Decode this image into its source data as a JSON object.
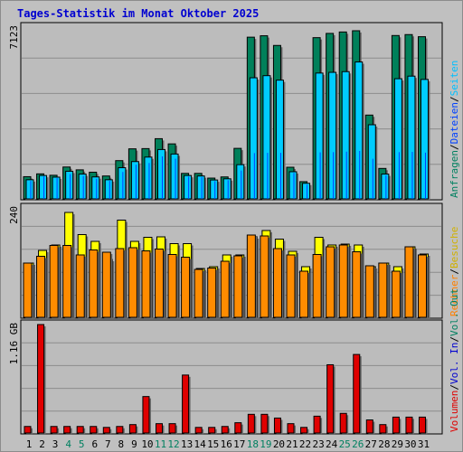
{
  "title": "Tages-Statistik im Monat Oktober 2025",
  "chart_data": [
    {
      "type": "bar",
      "panel": "top",
      "max_label": "7123",
      "ylim": [
        0,
        7123
      ],
      "categories": [
        "1",
        "2",
        "3",
        "4",
        "5",
        "6",
        "7",
        "8",
        "9",
        "10",
        "11",
        "12",
        "13",
        "14",
        "15",
        "16",
        "17",
        "18",
        "19",
        "20",
        "21",
        "22",
        "23",
        "24",
        "25",
        "26",
        "27",
        "28",
        "29",
        "30",
        "31"
      ],
      "weekend_days": [
        "4",
        "5",
        "11",
        "12",
        "18",
        "19",
        "25",
        "26"
      ],
      "legend": [
        {
          "text": "Anfragen",
          "color": "#008060"
        },
        {
          "text": "Dateien",
          "color": "#0040ff"
        },
        {
          "text": "Seiten",
          "color": "#00c0ff"
        }
      ],
      "legend_sep": "/",
      "series": [
        {
          "name": "Anfragen",
          "color": "#00805a",
          "values": [
            940,
            1060,
            1000,
            1350,
            1230,
            1130,
            970,
            1620,
            2120,
            2130,
            2550,
            2330,
            1080,
            1080,
            880,
            930,
            2140,
            6850,
            6910,
            6500,
            1340,
            730,
            6830,
            7010,
            7070,
            7123,
            3550,
            1290,
            6920,
            6960,
            6870
          ]
        },
        {
          "name": "Dateien",
          "color": "#0040ff",
          "values": [
            760,
            950,
            880,
            1050,
            970,
            850,
            760,
            1140,
            1450,
            1520,
            1800,
            1700,
            940,
            920,
            750,
            790,
            1200,
            1940,
            1950,
            1950,
            1100,
            600,
            1970,
            1980,
            2000,
            2030,
            1700,
            990,
            1980,
            1990,
            1960
          ]
        },
        {
          "name": "Seiten",
          "color": "#00ccff",
          "values": [
            810,
            990,
            920,
            1170,
            1050,
            930,
            810,
            1320,
            1580,
            1770,
            2090,
            1900,
            990,
            970,
            800,
            850,
            1450,
            5130,
            5220,
            5030,
            1150,
            660,
            5330,
            5360,
            5390,
            5800,
            3140,
            1050,
            5090,
            5200,
            5060
          ]
        }
      ]
    },
    {
      "type": "bar",
      "panel": "middle",
      "max_label": "240",
      "ylim": [
        0,
        240
      ],
      "categories": [
        "1",
        "2",
        "3",
        "4",
        "5",
        "6",
        "7",
        "8",
        "9",
        "10",
        "11",
        "12",
        "13",
        "14",
        "15",
        "16",
        "17",
        "18",
        "19",
        "20",
        "21",
        "22",
        "23",
        "24",
        "25",
        "26",
        "27",
        "28",
        "29",
        "30",
        "31"
      ],
      "legend": [
        {
          "text": "Rechner",
          "color": "#ff8000"
        },
        {
          "text": "Besuche",
          "color": "#d0b000"
        }
      ],
      "legend_sep": "/",
      "series": [
        {
          "name": "Besuche",
          "color": "#ffff00",
          "values": [
            120,
            148,
            160,
            232,
            183,
            168,
            128,
            215,
            168,
            177,
            178,
            163,
            163,
            108,
            112,
            138,
            138,
            178,
            192,
            173,
            146,
            112,
            177,
            160,
            162,
            160,
            112,
            120,
            112,
            156,
            140
          ]
        },
        {
          "name": "Rechner",
          "color": "#ff8c00",
          "values": [
            120,
            135,
            159,
            159,
            138,
            149,
            144,
            152,
            154,
            147,
            151,
            139,
            133,
            106,
            109,
            124,
            136,
            182,
            180,
            152,
            138,
            102,
            139,
            156,
            160,
            145,
            114,
            120,
            102,
            156,
            138
          ]
        }
      ]
    },
    {
      "type": "bar",
      "panel": "bottom",
      "max_label": "1.16 GB",
      "ylim": [
        0,
        1.16
      ],
      "categories": [
        "1",
        "2",
        "3",
        "4",
        "5",
        "6",
        "7",
        "8",
        "9",
        "10",
        "11",
        "12",
        "13",
        "14",
        "15",
        "16",
        "17",
        "18",
        "19",
        "20",
        "21",
        "22",
        "23",
        "24",
        "25",
        "26",
        "27",
        "28",
        "29",
        "30",
        "31"
      ],
      "legend": [
        {
          "text": "Volumen",
          "color": "#e00000"
        },
        {
          "text": "Vol. In",
          "color": "#0000d0"
        },
        {
          "text": "Vol. Out",
          "color": "#008060"
        }
      ],
      "legend_sep": "/",
      "series": [
        {
          "name": "Volumen",
          "color": "#e00000",
          "values": [
            0.07,
            1.16,
            0.07,
            0.07,
            0.07,
            0.07,
            0.06,
            0.07,
            0.09,
            0.39,
            0.1,
            0.1,
            0.62,
            0.06,
            0.06,
            0.07,
            0.11,
            0.2,
            0.2,
            0.16,
            0.1,
            0.06,
            0.18,
            0.73,
            0.21,
            0.84,
            0.14,
            0.09,
            0.17,
            0.17,
            0.17
          ]
        }
      ]
    }
  ]
}
